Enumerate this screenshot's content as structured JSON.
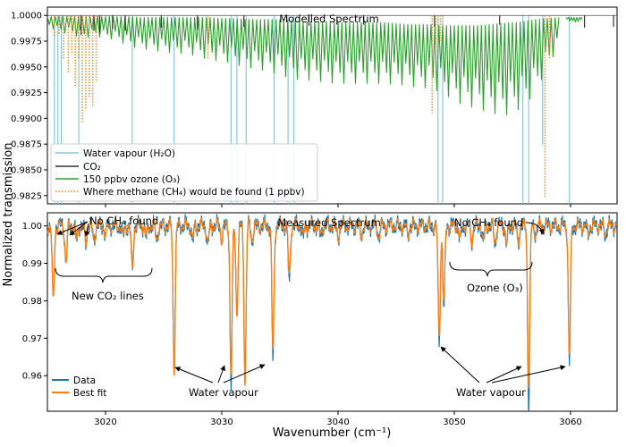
{
  "figure": {
    "ylabel": "Normalized transmission",
    "xlabel": "Wavenumber (cm⁻¹)"
  },
  "chart_data": [
    {
      "type": "line",
      "title": "Modelled Spectrum",
      "xlim": [
        3015,
        3064
      ],
      "ylim": [
        0.9817,
        1.0008
      ],
      "yticks": [
        "1.0000",
        "0.9975",
        "0.9950",
        "0.9925",
        "0.9900",
        "0.9875",
        "0.9850",
        "0.9825"
      ],
      "ytick_values": [
        1.0,
        0.9975,
        0.995,
        0.9925,
        0.99,
        0.9875,
        0.985,
        0.9825
      ],
      "legend_position": "lower-left",
      "series": [
        {
          "name": "Water vapour (H₂O)",
          "color": "#8dc3dc",
          "style": "solid",
          "baseline": 1.0,
          "lines": [
            [
              3015.6,
              0.9817
            ],
            [
              3015.9,
              0.9817
            ],
            [
              3016.2,
              0.9817
            ],
            [
              3017.7,
              0.9817
            ],
            [
              3022.3,
              0.9817
            ],
            [
              3025.9,
              0.9817
            ],
            [
              3030.8,
              0.9817
            ],
            [
              3031.3,
              0.9817
            ],
            [
              3032.1,
              0.9817
            ],
            [
              3034.5,
              0.9817
            ],
            [
              3035.7,
              0.9817
            ],
            [
              3036.2,
              0.9817
            ],
            [
              3048.6,
              0.9817
            ],
            [
              3049.0,
              0.9817
            ],
            [
              3055.9,
              0.9817
            ],
            [
              3056.4,
              0.9817
            ],
            [
              3057.6,
              0.9874
            ],
            [
              3059.9,
              0.9817
            ]
          ]
        },
        {
          "name": "CO₂",
          "color": "#333333",
          "style": "solid",
          "baseline": 1.0,
          "lines": [
            [
              3017.9,
              0.9981
            ],
            [
              3019.0,
              0.9985
            ],
            [
              3019.5,
              0.9983
            ],
            [
              3020.6,
              0.9987
            ],
            [
              3021.7,
              0.9985
            ],
            [
              3024.8,
              0.9988
            ],
            [
              3027.9,
              0.9986
            ],
            [
              3031.9,
              0.9989
            ],
            [
              3037.5,
              0.999
            ],
            [
              3042.2,
              0.9991
            ],
            [
              3048.3,
              0.9989
            ],
            [
              3053.9,
              0.9991
            ],
            [
              3061.2,
              0.9988
            ],
            [
              3063.7,
              0.9989
            ]
          ]
        },
        {
          "name": "150 ppbv ozone (O₃)",
          "color": "#2ca02c",
          "style": "solid",
          "segments": [
            {
              "x": [
                3015.0,
                3016.0,
                3017.0,
                3018.0,
                3019.0,
                3020.0,
                3021.0,
                3022.0,
                3023.0,
                3024.0,
                3025.0,
                3026.0,
                3027.0,
                3028.0,
                3029.0,
                3030.0,
                3031.0,
                3032.0,
                3033.0,
                3034.0,
                3035.0,
                3036.0,
                3037.0,
                3038.0,
                3039.0,
                3040.0,
                3041.0,
                3042.0,
                3043.0,
                3044.0,
                3045.0,
                3046.0,
                3047.0,
                3048.0,
                3049.0,
                3050.0,
                3051.0,
                3052.0,
                3053.0,
                3054.0,
                3055.0,
                3056.0,
                3057.0,
                3058.0,
                3059.0
              ],
              "upper": [
                0.9999,
                0.9999,
                0.9999,
                0.9999,
                0.9999,
                0.9999,
                0.9999,
                0.9999,
                0.9998,
                0.9998,
                0.9998,
                0.9998,
                0.9998,
                0.9998,
                0.9998,
                0.9997,
                0.9997,
                0.9996,
                0.9996,
                0.9996,
                0.9996,
                0.9995,
                0.9994,
                0.9994,
                0.9994,
                0.9993,
                0.9993,
                0.9993,
                0.9993,
                0.9993,
                0.9992,
                0.9991,
                0.9991,
                0.9991,
                0.999,
                0.999,
                0.999,
                0.999,
                0.9991,
                0.9992,
                0.9993,
                0.9994,
                0.9996,
                0.9997,
                0.9998
              ],
              "lower": [
                0.999,
                0.9984,
                0.9982,
                0.9978,
                0.998,
                0.9978,
                0.9976,
                0.997,
                0.9968,
                0.9966,
                0.9965,
                0.9963,
                0.9963,
                0.996,
                0.9957,
                0.9956,
                0.9953,
                0.995,
                0.9948,
                0.9946,
                0.9942,
                0.9939,
                0.9937,
                0.9937,
                0.9935,
                0.9934,
                0.9934,
                0.9934,
                0.9934,
                0.9934,
                0.9933,
                0.9932,
                0.993,
                0.9929,
                0.9925,
                0.9917,
                0.9912,
                0.991,
                0.9906,
                0.9903,
                0.9904,
                0.9913,
                0.9925,
                0.995,
                0.997
              ]
            },
            {
              "x": [
                3059.6,
                3060.3,
                3061.0
              ],
              "upper": [
                0.9998,
                0.9998,
                0.9998
              ],
              "lower": [
                0.9997,
                0.9992,
                0.9996
              ]
            }
          ]
        },
        {
          "name": "Where methane (CH₄) would be found (1 ppbv)",
          "color": "#f0922e",
          "style": "dotted",
          "baseline": 1.0,
          "lines": [
            [
              3015.6,
              0.9978
            ],
            [
              3016.0,
              0.9982
            ],
            [
              3016.4,
              0.9958
            ],
            [
              3016.8,
              0.9945
            ],
            [
              3017.1,
              0.9962
            ],
            [
              3017.4,
              0.993
            ],
            [
              3017.7,
              0.9958
            ],
            [
              3018.0,
              0.9895
            ],
            [
              3018.3,
              0.9908
            ],
            [
              3018.6,
              0.9921
            ],
            [
              3018.9,
              0.9911
            ],
            [
              3019.2,
              0.9935
            ],
            [
              3028.8,
              0.9958
            ],
            [
              3048.1,
              0.9905
            ],
            [
              3048.4,
              0.9966
            ],
            [
              3048.8,
              0.9975
            ],
            [
              3057.8,
              0.9823
            ],
            [
              3058.2,
              0.9958
            ]
          ]
        }
      ]
    },
    {
      "type": "line",
      "title": "Measured Spectrum",
      "xlim": [
        3015,
        3064
      ],
      "ylim": [
        0.9505,
        1.0035
      ],
      "xticks": [
        3020,
        3030,
        3040,
        3050,
        3060
      ],
      "yticks": [
        "1.00",
        "0.99",
        "0.98",
        "0.97",
        "0.96"
      ],
      "ytick_values": [
        1.0,
        0.99,
        0.98,
        0.97,
        0.96
      ],
      "legend_position": "lower-left",
      "series": [
        {
          "name": "Data",
          "color": "#1f77b4"
        },
        {
          "name": "Best fit",
          "color": "#ff7f0e"
        }
      ],
      "dips": [
        [
          3015.5,
          0.98,
          0.98
        ],
        [
          3016.6,
          0.99,
          0.99
        ],
        [
          3017.5,
          0.996,
          0.996
        ],
        [
          3018.3,
          0.9955,
          0.9955
        ],
        [
          3019.0,
          0.996,
          0.996
        ],
        [
          3020.0,
          0.9975,
          0.9975
        ],
        [
          3021.5,
          0.997,
          0.997
        ],
        [
          3022.3,
          0.989,
          0.988
        ],
        [
          3023.5,
          0.997,
          0.997
        ],
        [
          3024.4,
          0.996,
          0.996
        ],
        [
          3025.9,
          0.962,
          0.962
        ],
        [
          3027.5,
          0.996,
          0.996
        ],
        [
          3028.8,
          0.995,
          0.995
        ],
        [
          3030.0,
          0.997,
          0.997
        ],
        [
          3030.8,
          0.9575,
          0.961
        ],
        [
          3031.3,
          0.977,
          0.977
        ],
        [
          3032.0,
          0.96,
          0.958
        ],
        [
          3032.6,
          0.996,
          0.996
        ],
        [
          3034.4,
          0.964,
          0.9665
        ],
        [
          3035.8,
          0.985,
          0.9865
        ],
        [
          3037.0,
          0.997,
          0.997
        ],
        [
          3038.5,
          0.9975,
          0.9975
        ],
        [
          3040.0,
          0.997,
          0.997
        ],
        [
          3042.0,
          0.9975,
          0.9975
        ],
        [
          3043.5,
          0.997,
          0.997
        ],
        [
          3046.0,
          0.9975,
          0.9975
        ],
        [
          3048.7,
          0.9685,
          0.9705
        ],
        [
          3049.1,
          0.978,
          0.98
        ],
        [
          3050.5,
          0.996,
          0.996
        ],
        [
          3051.5,
          0.996,
          0.996
        ],
        [
          3052.5,
          0.9955,
          0.9955
        ],
        [
          3053.5,
          0.9955,
          0.9955
        ],
        [
          3054.5,
          0.995,
          0.995
        ],
        [
          3055.5,
          0.9955,
          0.9955
        ],
        [
          3056.4,
          0.951,
          0.958
        ],
        [
          3057.0,
          0.998,
          0.998
        ],
        [
          3059.9,
          0.964,
          0.966
        ],
        [
          3061.5,
          0.998,
          0.998
        ],
        [
          3063.0,
          0.998,
          0.998
        ]
      ],
      "annotations": {
        "no_ch4_left": "No CH₄ found",
        "no_ch4_right": "No CH₄ found",
        "new_co2": "New CO₂ lines",
        "ozone": "Ozone (O₃)",
        "water_left": "Water vapour",
        "water_right": "Water vapour"
      }
    }
  ]
}
